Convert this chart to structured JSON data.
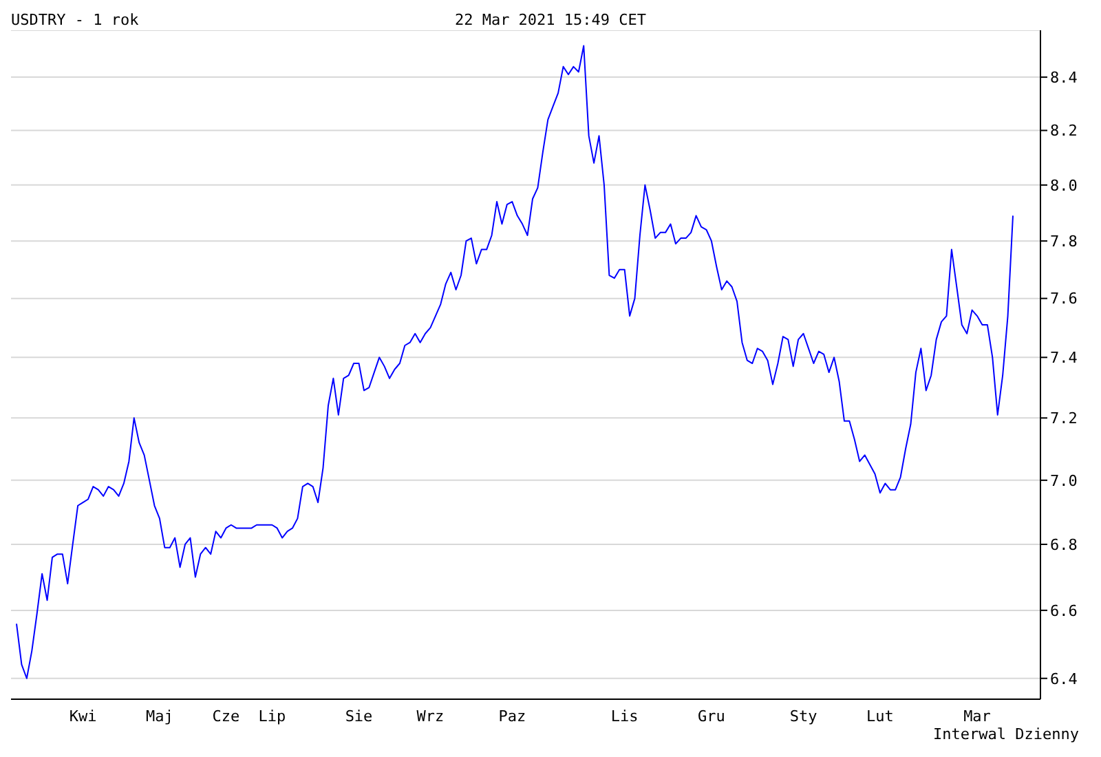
{
  "chart_data": {
    "type": "line",
    "title": "USDTRY - 1 rok",
    "subtitle": "22 Mar 2021 15:49 CET",
    "annotations": [
      "Interwal Dzienny"
    ],
    "categories": [
      null,
      null,
      null,
      null,
      null,
      null,
      null,
      null,
      null,
      null,
      null,
      null,
      null,
      "Kwi",
      null,
      null,
      null,
      null,
      null,
      null,
      null,
      null,
      null,
      null,
      null,
      null,
      null,
      null,
      "Maj",
      null,
      null,
      null,
      null,
      null,
      null,
      null,
      null,
      null,
      null,
      null,
      null,
      "Cze",
      null,
      null,
      null,
      null,
      null,
      null,
      null,
      null,
      "Lip",
      null,
      null,
      null,
      null,
      null,
      null,
      null,
      null,
      null,
      null,
      null,
      null,
      null,
      null,
      null,
      null,
      "Sie",
      null,
      null,
      null,
      null,
      null,
      null,
      null,
      null,
      null,
      null,
      null,
      null,
      null,
      "Wrz",
      null,
      null,
      null,
      null,
      null,
      null,
      null,
      null,
      null,
      null,
      null,
      null,
      null,
      null,
      null,
      "Paz",
      null,
      null,
      null,
      null,
      null,
      null,
      null,
      null,
      null,
      null,
      null,
      null,
      null,
      null,
      null,
      null,
      null,
      null,
      null,
      null,
      null,
      "Lis",
      null,
      null,
      null,
      null,
      null,
      null,
      null,
      null,
      null,
      null,
      null,
      null,
      null,
      null,
      null,
      null,
      "Gru",
      null,
      null,
      null,
      null,
      null,
      null,
      null,
      null,
      null,
      null,
      null,
      null,
      null,
      null,
      null,
      null,
      null,
      "Sty",
      null,
      null,
      null,
      null,
      null,
      null,
      null,
      null,
      null,
      null,
      null,
      null,
      null,
      null,
      "Lut",
      null,
      null,
      null,
      null,
      null,
      null,
      null,
      null,
      null,
      null,
      null,
      null,
      null,
      null,
      null,
      null,
      null,
      null,
      "Mar",
      null,
      null,
      null,
      null,
      null,
      null,
      null
    ],
    "values": [
      6.56,
      6.44,
      6.4,
      6.48,
      6.59,
      6.71,
      6.63,
      6.76,
      6.77,
      6.77,
      6.68,
      6.8,
      6.92,
      6.93,
      6.94,
      6.98,
      6.97,
      6.95,
      6.98,
      6.97,
      6.95,
      6.99,
      7.06,
      7.2,
      7.12,
      7.08,
      7.0,
      6.92,
      6.88,
      6.79,
      6.79,
      6.82,
      6.73,
      6.8,
      6.82,
      6.7,
      6.77,
      6.79,
      6.77,
      6.84,
      6.82,
      6.85,
      6.86,
      6.85,
      6.85,
      6.85,
      6.85,
      6.86,
      6.86,
      6.86,
      6.86,
      6.85,
      6.82,
      6.84,
      6.85,
      6.88,
      6.98,
      6.99,
      6.98,
      6.93,
      7.04,
      7.24,
      7.33,
      7.21,
      7.33,
      7.34,
      7.38,
      7.38,
      7.29,
      7.3,
      7.35,
      7.4,
      7.37,
      7.33,
      7.36,
      7.38,
      7.44,
      7.45,
      7.48,
      7.45,
      7.48,
      7.5,
      7.54,
      7.58,
      7.65,
      7.69,
      7.63,
      7.68,
      7.8,
      7.81,
      7.72,
      7.77,
      7.77,
      7.82,
      7.94,
      7.86,
      7.93,
      7.94,
      7.89,
      7.86,
      7.82,
      7.95,
      7.99,
      8.12,
      8.24,
      8.29,
      8.34,
      8.44,
      8.41,
      8.44,
      8.42,
      8.52,
      8.18,
      8.08,
      8.18,
      8.0,
      7.68,
      7.67,
      7.7,
      7.7,
      7.54,
      7.6,
      7.82,
      8.0,
      7.91,
      7.81,
      7.83,
      7.83,
      7.86,
      7.79,
      7.81,
      7.81,
      7.83,
      7.89,
      7.85,
      7.84,
      7.8,
      7.71,
      7.63,
      7.66,
      7.64,
      7.59,
      7.45,
      7.39,
      7.38,
      7.43,
      7.42,
      7.39,
      7.31,
      7.38,
      7.47,
      7.46,
      7.37,
      7.46,
      7.48,
      7.43,
      7.38,
      7.42,
      7.41,
      7.35,
      7.4,
      7.32,
      7.19,
      7.19,
      7.13,
      7.06,
      7.08,
      7.05,
      7.02,
      6.96,
      6.99,
      6.97,
      6.97,
      7.01,
      7.1,
      7.18,
      7.35,
      7.43,
      7.29,
      7.34,
      7.46,
      7.52,
      7.54,
      7.77,
      7.64,
      7.51,
      7.48,
      7.56,
      7.54,
      7.51,
      7.51,
      7.4,
      7.21,
      7.34,
      7.54,
      7.89
    ],
    "color": "#0000ff",
    "log": true,
    "grid": "y",
    "ylim": [
      6.34,
      8.58
    ],
    "yticks": [
      6.4,
      6.6,
      6.8,
      {
        "value": 7,
        "label": "7.0"
      },
      7.2,
      7.4,
      7.6,
      7.8,
      {
        "value": 8,
        "label": "8.0"
      },
      8.2,
      8.4
    ]
  }
}
